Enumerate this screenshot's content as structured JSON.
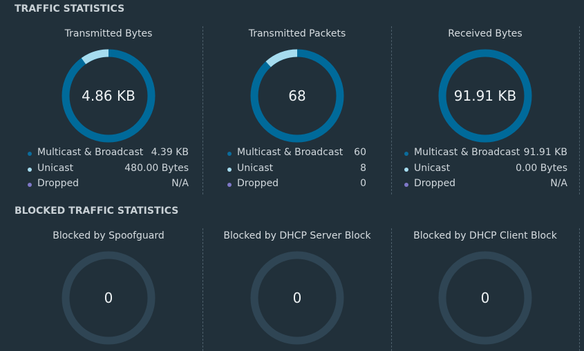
{
  "colors": {
    "background": "#21303a",
    "donut_primary": "#006a9a",
    "donut_secondary": "#a6dcef",
    "donut_blocked": "#2f4554",
    "dot_multicast": "#0b6c9c",
    "dot_unicast": "#a6dcef",
    "dot_dropped": "#7f78c8"
  },
  "traffic": {
    "title": "TRAFFIC STATISTICS",
    "panels": [
      {
        "title": "Transmitted Bytes",
        "center_value": "4.86 KB",
        "secondary_fraction": 0.0988,
        "legend": [
          {
            "label": "Multicast & Broadcast",
            "value": "4.39 KB",
            "dot": "multicast"
          },
          {
            "label": "Unicast",
            "value": "480.00 Bytes",
            "dot": "unicast"
          },
          {
            "label": "Dropped",
            "value": "N/A",
            "dot": "dropped"
          }
        ]
      },
      {
        "title": "Transmitted Packets",
        "center_value": "68",
        "secondary_fraction": 0.1176,
        "legend": [
          {
            "label": "Multicast & Broadcast",
            "value": "60",
            "dot": "multicast"
          },
          {
            "label": "Unicast",
            "value": "8",
            "dot": "unicast"
          },
          {
            "label": "Dropped",
            "value": "0",
            "dot": "dropped"
          }
        ]
      },
      {
        "title": "Received Bytes",
        "center_value": "91.91 KB",
        "secondary_fraction": 0,
        "legend": [
          {
            "label": "Multicast & Broadcast",
            "value": "91.91 KB",
            "dot": "multicast"
          },
          {
            "label": "Unicast",
            "value": "0.00 Bytes",
            "dot": "unicast"
          },
          {
            "label": "Dropped",
            "value": "N/A",
            "dot": "dropped"
          }
        ]
      }
    ]
  },
  "blocked": {
    "title": "BLOCKED TRAFFIC STATISTICS",
    "panels": [
      {
        "title": "Blocked by Spoofguard",
        "center_value": "0"
      },
      {
        "title": "Blocked by DHCP Server Block",
        "center_value": "0"
      },
      {
        "title": "Blocked by DHCP Client Block",
        "center_value": "0"
      }
    ]
  }
}
